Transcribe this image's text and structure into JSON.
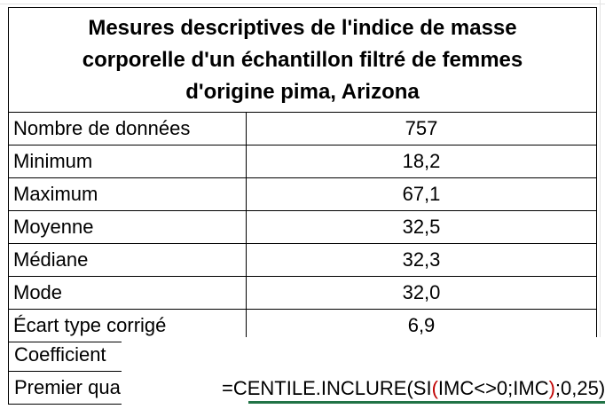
{
  "sheet": {
    "title_lines": [
      "Mesures descriptives de l'indice de masse",
      "corporelle d'un échantillon filtré de femmes",
      "d'origine pima, Arizona"
    ],
    "rows": [
      {
        "label": "Nombre de données",
        "value": "757"
      },
      {
        "label": "Minimum",
        "value": "18,2"
      },
      {
        "label": "Maximum",
        "value": "67,1"
      },
      {
        "label": "Moyenne",
        "value": "32,5"
      },
      {
        "label": "Médiane",
        "value": "32,3"
      },
      {
        "label": "Mode",
        "value": "32,0"
      },
      {
        "label": "Écart type corrigé",
        "value": "6,9"
      }
    ],
    "partial_rows": {
      "coefficient_label": "Coefficient",
      "premier_label": "Premier qua"
    },
    "formula": {
      "part1": "=CENTILE.INCLURE(SI",
      "open_paren": "(",
      "part2": "IMC<>0;IMC",
      "close_paren": ")",
      "part3": ";0,25)"
    },
    "colors": {
      "gridline": "#e2e2e2",
      "selection": "#217346",
      "paren_red": "#c00000"
    }
  }
}
